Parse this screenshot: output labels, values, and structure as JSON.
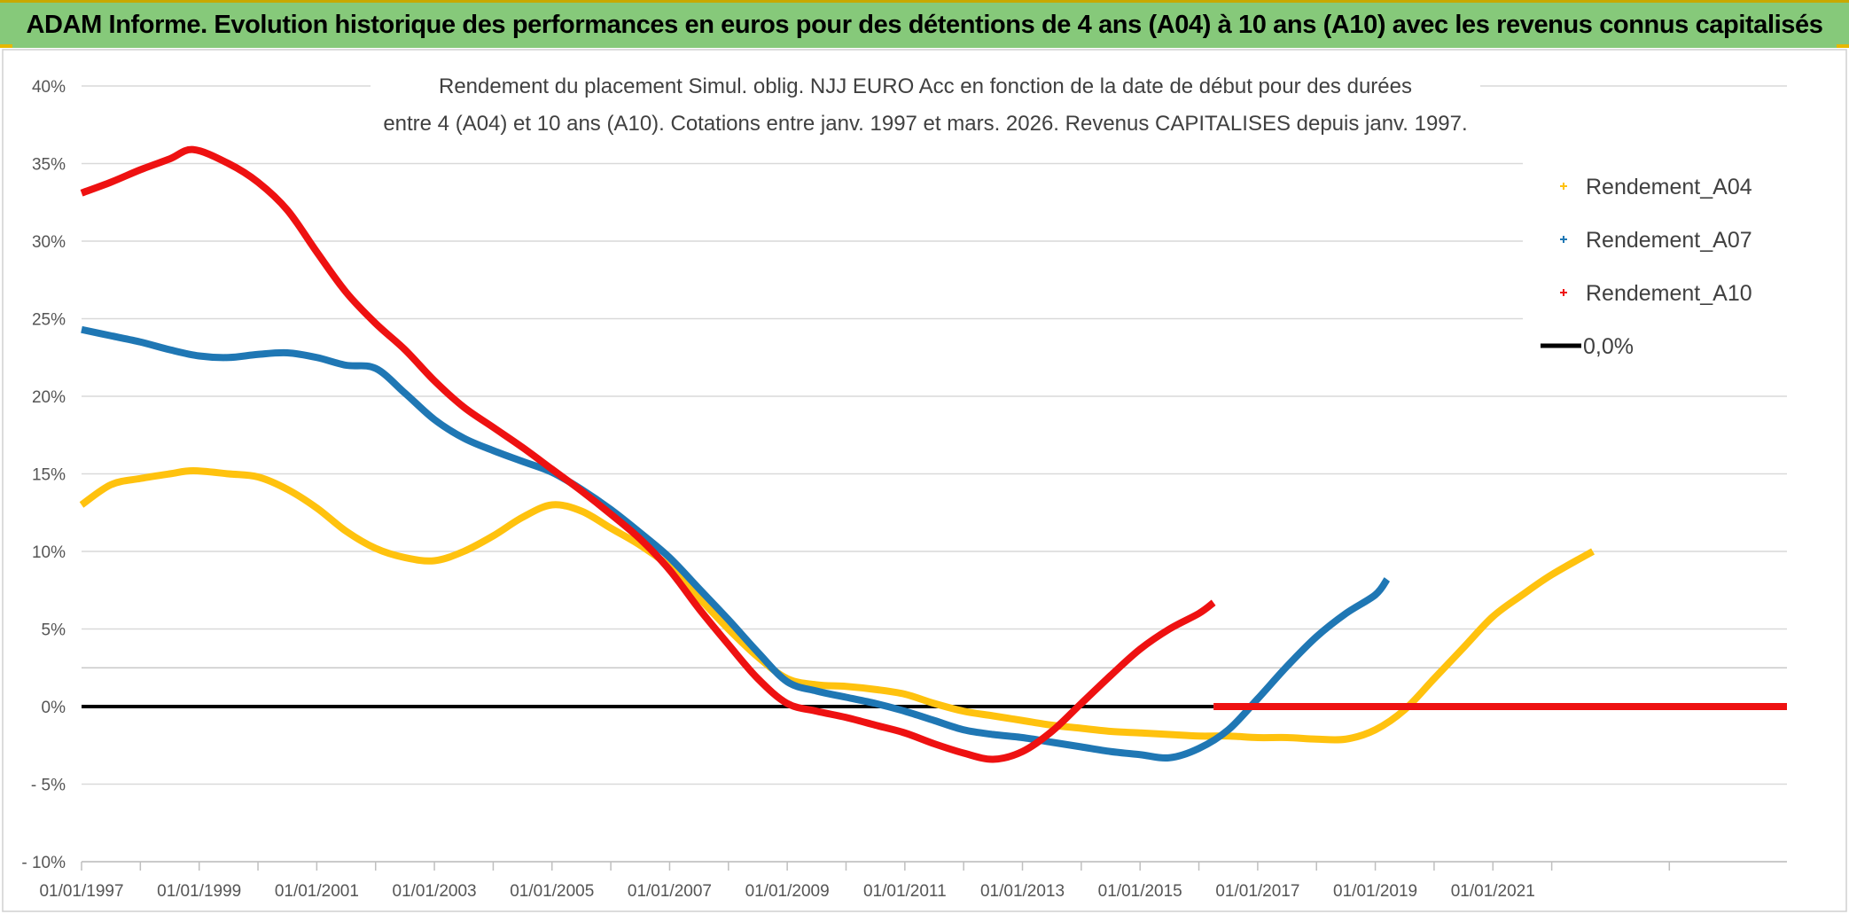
{
  "header": {
    "title": "ADAM Informe. Evolution historique des performances en euros pour des détentions de 4 ans (A04) à 10 ans (A10) avec les revenus connus capitalisés"
  },
  "colors": {
    "banner": "#86c97a",
    "a04": "#ffc20e",
    "a07": "#1f77b4",
    "a10": "#ee1111",
    "zero": "#000000",
    "grid": "#d9d9d9"
  },
  "chart_data": {
    "type": "line",
    "title_lines": [
      "Rendement du placement Simul. oblig. NJJ EURO Acc en fonction de la date de début pour des durées",
      "entre 4 (A04) et 10 ans (A10). Cotations entre janv. 1997 et mars. 2026. Revenus CAPITALISES depuis janv. 1997."
    ],
    "x_unit": "year",
    "xlim": [
      1997.0,
      2026.0
    ],
    "x_tick_values": [
      1997,
      1999,
      2001,
      2003,
      2005,
      2007,
      2009,
      2011,
      2013,
      2015,
      2017,
      2019,
      2021
    ],
    "x_tick_labels": [
      "01/01/1997",
      "01/01/1999",
      "01/01/2001",
      "01/01/2003",
      "01/01/2005",
      "01/01/2007",
      "01/01/2009",
      "01/01/2011",
      "01/01/2013",
      "01/01/2015",
      "01/01/2017",
      "01/01/2019",
      "01/01/2021"
    ],
    "ylim": [
      -10,
      40
    ],
    "y_tick_values": [
      40,
      35,
      30,
      25,
      20,
      15,
      10,
      5,
      0,
      -5,
      -10
    ],
    "y_tick_labels": [
      "40%",
      "35%",
      "30%",
      "25%",
      "20%",
      "15%",
      "10%",
      "5%",
      "0%",
      "- 5%",
      "- 10%"
    ],
    "grid": "horizontal",
    "legend_position": "top-right",
    "series": [
      {
        "name": "Rendement_A04",
        "color": "#ffc20e",
        "points": [
          [
            1997.0,
            13.0
          ],
          [
            1997.5,
            14.3
          ],
          [
            1998.0,
            14.7
          ],
          [
            1998.5,
            15.0
          ],
          [
            1998.9,
            15.2
          ],
          [
            1999.5,
            15.0
          ],
          [
            2000.0,
            14.8
          ],
          [
            2000.5,
            14.0
          ],
          [
            2001.0,
            12.8
          ],
          [
            2001.5,
            11.3
          ],
          [
            2002.0,
            10.2
          ],
          [
            2002.5,
            9.6
          ],
          [
            2003.0,
            9.4
          ],
          [
            2003.5,
            10.0
          ],
          [
            2004.0,
            11.0
          ],
          [
            2004.5,
            12.2
          ],
          [
            2005.0,
            13.0
          ],
          [
            2005.5,
            12.6
          ],
          [
            2006.0,
            11.5
          ],
          [
            2006.5,
            10.4
          ],
          [
            2007.0,
            9.0
          ],
          [
            2007.5,
            7.0
          ],
          [
            2008.0,
            5.0
          ],
          [
            2008.5,
            3.2
          ],
          [
            2009.0,
            1.8
          ],
          [
            2009.5,
            1.4
          ],
          [
            2010.0,
            1.3
          ],
          [
            2010.5,
            1.1
          ],
          [
            2011.0,
            0.8
          ],
          [
            2011.5,
            0.2
          ],
          [
            2012.0,
            -0.3
          ],
          [
            2012.5,
            -0.6
          ],
          [
            2013.0,
            -0.9
          ],
          [
            2013.5,
            -1.2
          ],
          [
            2014.0,
            -1.4
          ],
          [
            2014.5,
            -1.6
          ],
          [
            2015.0,
            -1.7
          ],
          [
            2015.5,
            -1.8
          ],
          [
            2016.0,
            -1.9
          ],
          [
            2016.5,
            -1.9
          ],
          [
            2017.0,
            -2.0
          ],
          [
            2017.5,
            -2.0
          ],
          [
            2018.0,
            -2.1
          ],
          [
            2018.5,
            -2.1
          ],
          [
            2019.0,
            -1.5
          ],
          [
            2019.5,
            -0.2
          ],
          [
            2020.0,
            1.8
          ],
          [
            2020.5,
            3.8
          ],
          [
            2021.0,
            5.8
          ],
          [
            2021.5,
            7.2
          ],
          [
            2022.0,
            8.5
          ],
          [
            2022.7,
            10.0
          ]
        ]
      },
      {
        "name": "Rendement_A07",
        "color": "#1f77b4",
        "points": [
          [
            1997.0,
            24.3
          ],
          [
            1997.5,
            23.9
          ],
          [
            1998.0,
            23.5
          ],
          [
            1998.5,
            23.0
          ],
          [
            1999.0,
            22.6
          ],
          [
            1999.5,
            22.5
          ],
          [
            2000.0,
            22.7
          ],
          [
            2000.5,
            22.8
          ],
          [
            2001.0,
            22.5
          ],
          [
            2001.5,
            22.0
          ],
          [
            2002.0,
            21.8
          ],
          [
            2002.5,
            20.2
          ],
          [
            2003.0,
            18.5
          ],
          [
            2003.5,
            17.3
          ],
          [
            2004.0,
            16.5
          ],
          [
            2004.5,
            15.8
          ],
          [
            2005.0,
            15.1
          ],
          [
            2005.5,
            14.0
          ],
          [
            2006.0,
            12.7
          ],
          [
            2006.5,
            11.2
          ],
          [
            2007.0,
            9.6
          ],
          [
            2007.5,
            7.6
          ],
          [
            2008.0,
            5.6
          ],
          [
            2008.5,
            3.5
          ],
          [
            2009.0,
            1.6
          ],
          [
            2009.5,
            1.0
          ],
          [
            2010.0,
            0.6
          ],
          [
            2010.5,
            0.2
          ],
          [
            2011.0,
            -0.3
          ],
          [
            2011.5,
            -0.9
          ],
          [
            2012.0,
            -1.5
          ],
          [
            2012.5,
            -1.8
          ],
          [
            2013.0,
            -2.0
          ],
          [
            2013.5,
            -2.3
          ],
          [
            2014.0,
            -2.6
          ],
          [
            2014.5,
            -2.9
          ],
          [
            2015.0,
            -3.1
          ],
          [
            2015.5,
            -3.3
          ],
          [
            2016.0,
            -2.7
          ],
          [
            2016.5,
            -1.5
          ],
          [
            2017.0,
            0.5
          ],
          [
            2017.5,
            2.6
          ],
          [
            2018.0,
            4.5
          ],
          [
            2018.5,
            6.0
          ],
          [
            2019.0,
            7.2
          ],
          [
            2019.2,
            8.2
          ]
        ]
      },
      {
        "name": "Rendement_A10",
        "color": "#ee1111",
        "points": [
          [
            1997.0,
            33.1
          ],
          [
            1997.5,
            33.8
          ],
          [
            1998.0,
            34.6
          ],
          [
            1998.5,
            35.3
          ],
          [
            1998.9,
            35.9
          ],
          [
            1999.5,
            35.0
          ],
          [
            2000.0,
            33.8
          ],
          [
            2000.5,
            32.0
          ],
          [
            2001.0,
            29.3
          ],
          [
            2001.5,
            26.7
          ],
          [
            2002.0,
            24.7
          ],
          [
            2002.5,
            23.0
          ],
          [
            2003.0,
            21.0
          ],
          [
            2003.5,
            19.3
          ],
          [
            2004.0,
            18.0
          ],
          [
            2004.5,
            16.7
          ],
          [
            2005.0,
            15.3
          ],
          [
            2005.5,
            13.9
          ],
          [
            2006.0,
            12.4
          ],
          [
            2006.5,
            10.8
          ],
          [
            2007.0,
            8.8
          ],
          [
            2007.5,
            6.3
          ],
          [
            2008.0,
            4.0
          ],
          [
            2008.5,
            1.8
          ],
          [
            2009.0,
            0.2
          ],
          [
            2009.5,
            -0.3
          ],
          [
            2010.0,
            -0.7
          ],
          [
            2010.5,
            -1.2
          ],
          [
            2011.0,
            -1.7
          ],
          [
            2011.5,
            -2.4
          ],
          [
            2012.0,
            -3.0
          ],
          [
            2012.5,
            -3.4
          ],
          [
            2013.0,
            -2.9
          ],
          [
            2013.5,
            -1.6
          ],
          [
            2014.0,
            0.2
          ],
          [
            2014.5,
            2.0
          ],
          [
            2015.0,
            3.7
          ],
          [
            2015.5,
            5.0
          ],
          [
            2016.0,
            6.0
          ],
          [
            2016.25,
            6.7
          ]
        ]
      },
      {
        "name": "Rendement_A10",
        "color": "#ee1111",
        "points": [
          [
            2016.25,
            0.0
          ],
          [
            2026.0,
            0.0
          ]
        ]
      },
      {
        "name": "0,0%",
        "color": "#000000",
        "points": [
          [
            1997.0,
            0.0
          ],
          [
            2016.25,
            0.0
          ]
        ]
      }
    ],
    "legend": [
      {
        "label": "Rendement_A04",
        "color": "#ffc20e",
        "marker": "plus"
      },
      {
        "label": "Rendement_A07",
        "color": "#1f77b4",
        "marker": "plus"
      },
      {
        "label": "Rendement_A10",
        "color": "#ee1111",
        "marker": "plus"
      },
      {
        "label": "0,0%",
        "color": "#000000",
        "marker": "line"
      }
    ]
  }
}
